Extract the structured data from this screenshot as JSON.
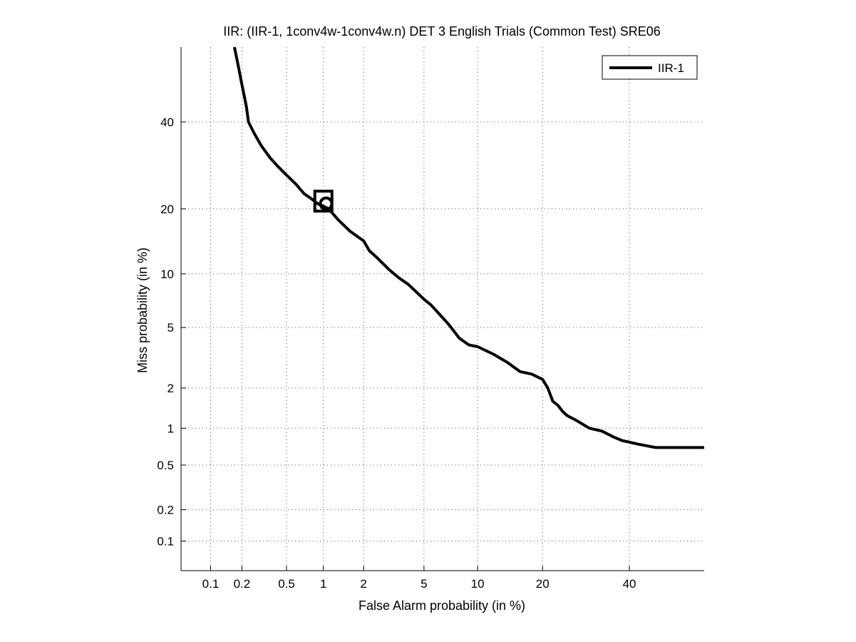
{
  "chart_data": {
    "type": "line",
    "title": "IIR: (IIR-1, 1conv4w-1conv4w.n) DET 3 English Trials (Common Test) SRE06",
    "xlabel": "False Alarm probability (in %)",
    "ylabel": "Miss probability (in %)",
    "x_scale": "normal-deviate (probit)",
    "y_scale": "normal-deviate (probit)",
    "xlim": [
      0.05,
      60
    ],
    "ylim": [
      0.05,
      60
    ],
    "x_ticks": [
      0.1,
      0.2,
      0.5,
      1,
      2,
      5,
      10,
      20,
      40
    ],
    "x_tick_labels": [
      "0.1",
      "0.2",
      "0.5",
      "1",
      "2",
      "5",
      "10",
      "20",
      "40"
    ],
    "y_ticks": [
      0.1,
      0.2,
      0.5,
      1,
      2,
      5,
      10,
      20,
      40
    ],
    "y_tick_labels": [
      "0.1",
      "0.2",
      "0.5",
      "1",
      "2",
      "5",
      "10",
      "20",
      "40"
    ],
    "grid": true,
    "legend_position": "top-right",
    "series": [
      {
        "name": "IIR-1",
        "color": "#000000",
        "x": [
          0.17,
          0.185,
          0.2,
          0.21,
          0.22,
          0.23,
          0.26,
          0.3,
          0.36,
          0.42,
          0.5,
          0.6,
          0.7,
          0.8,
          0.9,
          1.0,
          1.1,
          1.3,
          1.6,
          2.0,
          2.2,
          2.5,
          3.0,
          3.5,
          4.0,
          4.5,
          5.0,
          5.5,
          6.0,
          7.0,
          8.0,
          9.0,
          10.0,
          12.0,
          14.0,
          16.0,
          18.0,
          20.0,
          21.0,
          22.0,
          23.0,
          24.0,
          25.0,
          27.0,
          30.0,
          33.0,
          36.0,
          38.0,
          42.0,
          47.0,
          60.0
        ],
        "y": [
          60.0,
          55.0,
          50.0,
          47.0,
          44.0,
          40.0,
          37.0,
          34.0,
          31.0,
          29.0,
          27.0,
          25.0,
          23.0,
          22.0,
          21.0,
          20.5,
          20.0,
          18.0,
          16.0,
          14.5,
          13.0,
          12.0,
          10.5,
          9.5,
          8.8,
          8.0,
          7.3,
          6.8,
          6.2,
          5.2,
          4.3,
          3.9,
          3.8,
          3.4,
          3.0,
          2.6,
          2.5,
          2.3,
          2.0,
          1.6,
          1.5,
          1.35,
          1.25,
          1.15,
          1.0,
          0.95,
          0.85,
          0.8,
          0.75,
          0.7,
          0.7
        ]
      }
    ],
    "markers": [
      {
        "shape": "square",
        "x": 1.0,
        "y": 21.5
      },
      {
        "shape": "circle",
        "x": 1.05,
        "y": 21.0
      }
    ]
  }
}
